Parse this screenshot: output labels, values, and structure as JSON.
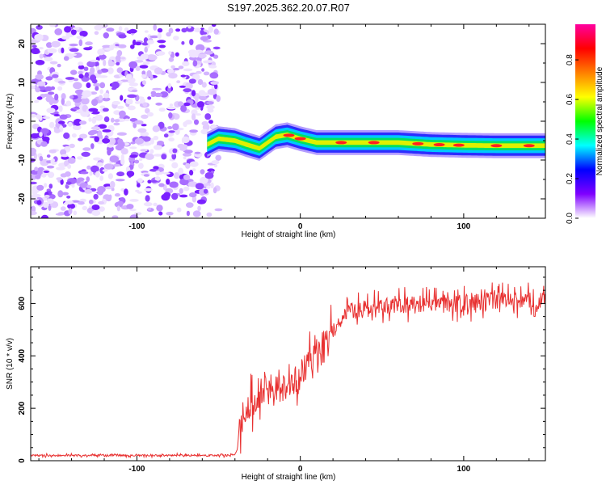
{
  "title": "S197.2025.362.20.07.R07",
  "colorbar": {
    "label": "Normalized spectral amplitude",
    "ticks": [
      "0.0",
      "0.2",
      "0.4",
      "0.6",
      "0.8"
    ],
    "tick_values": [
      0.0,
      0.2,
      0.4,
      0.6,
      0.8
    ],
    "range": [
      0,
      0.98
    ],
    "colors": [
      "#ffffff",
      "#7f00ff",
      "#0000ff",
      "#00ffff",
      "#00ff00",
      "#ffff00",
      "#ff7f00",
      "#ff0000",
      "#ff00a0"
    ]
  },
  "chart_data": [
    {
      "type": "heatmap",
      "title": "S197.2025.362.20.07.R07",
      "xlabel": "Height of straight line (km)",
      "ylabel": "Frequency (Hz)",
      "xlim": [
        -165,
        150
      ],
      "ylim": [
        -25,
        25
      ],
      "xticks": [
        "-100",
        "0",
        "100"
      ],
      "xtick_values": [
        -100,
        0,
        100
      ],
      "yticks": [
        "20",
        "10",
        "0",
        "-10",
        "-20"
      ],
      "ytick_values": [
        20,
        10,
        0,
        -10,
        -20
      ],
      "noise_region_x": [
        -165,
        -50
      ],
      "signal_track": {
        "x": [
          -57,
          -50,
          -40,
          -33,
          -25,
          -15,
          -8,
          0,
          10,
          30,
          60,
          80,
          100,
          120,
          150
        ],
        "freq_hz": [
          -6,
          -4.5,
          -5,
          -6,
          -7,
          -4,
          -3.5,
          -4.5,
          -5.5,
          -5.5,
          -5.5,
          -6,
          -6.2,
          -6.3,
          -6.3
        ],
        "peaks_x": [
          -7,
          0,
          25,
          45,
          72,
          85,
          97,
          120,
          140
        ]
      }
    },
    {
      "type": "line",
      "xlabel": "Height of straight line (km)",
      "ylabel": "SNR (10 * v/v)",
      "xlim": [
        -165,
        150
      ],
      "ylim": [
        0,
        740
      ],
      "xticks": [
        "-100",
        "0",
        "100"
      ],
      "xtick_values": [
        -100,
        0,
        100
      ],
      "yticks": [
        "0",
        "200",
        "400",
        "600"
      ],
      "ytick_values": [
        0,
        200,
        400,
        600
      ],
      "series": [
        {
          "name": "SNR",
          "color": "#e83030",
          "x": [
            -165,
            -140,
            -110,
            -80,
            -50,
            -40,
            -38,
            -35,
            -30,
            -25,
            -20,
            -15,
            -10,
            -5,
            0,
            5,
            10,
            15,
            20,
            25,
            30,
            40,
            60,
            80,
            100,
            120,
            150
          ],
          "y": [
            20,
            20,
            20,
            20,
            20,
            20,
            60,
            180,
            220,
            250,
            280,
            280,
            270,
            300,
            330,
            370,
            410,
            450,
            500,
            540,
            570,
            580,
            590,
            600,
            600,
            610,
            610
          ]
        }
      ]
    }
  ]
}
